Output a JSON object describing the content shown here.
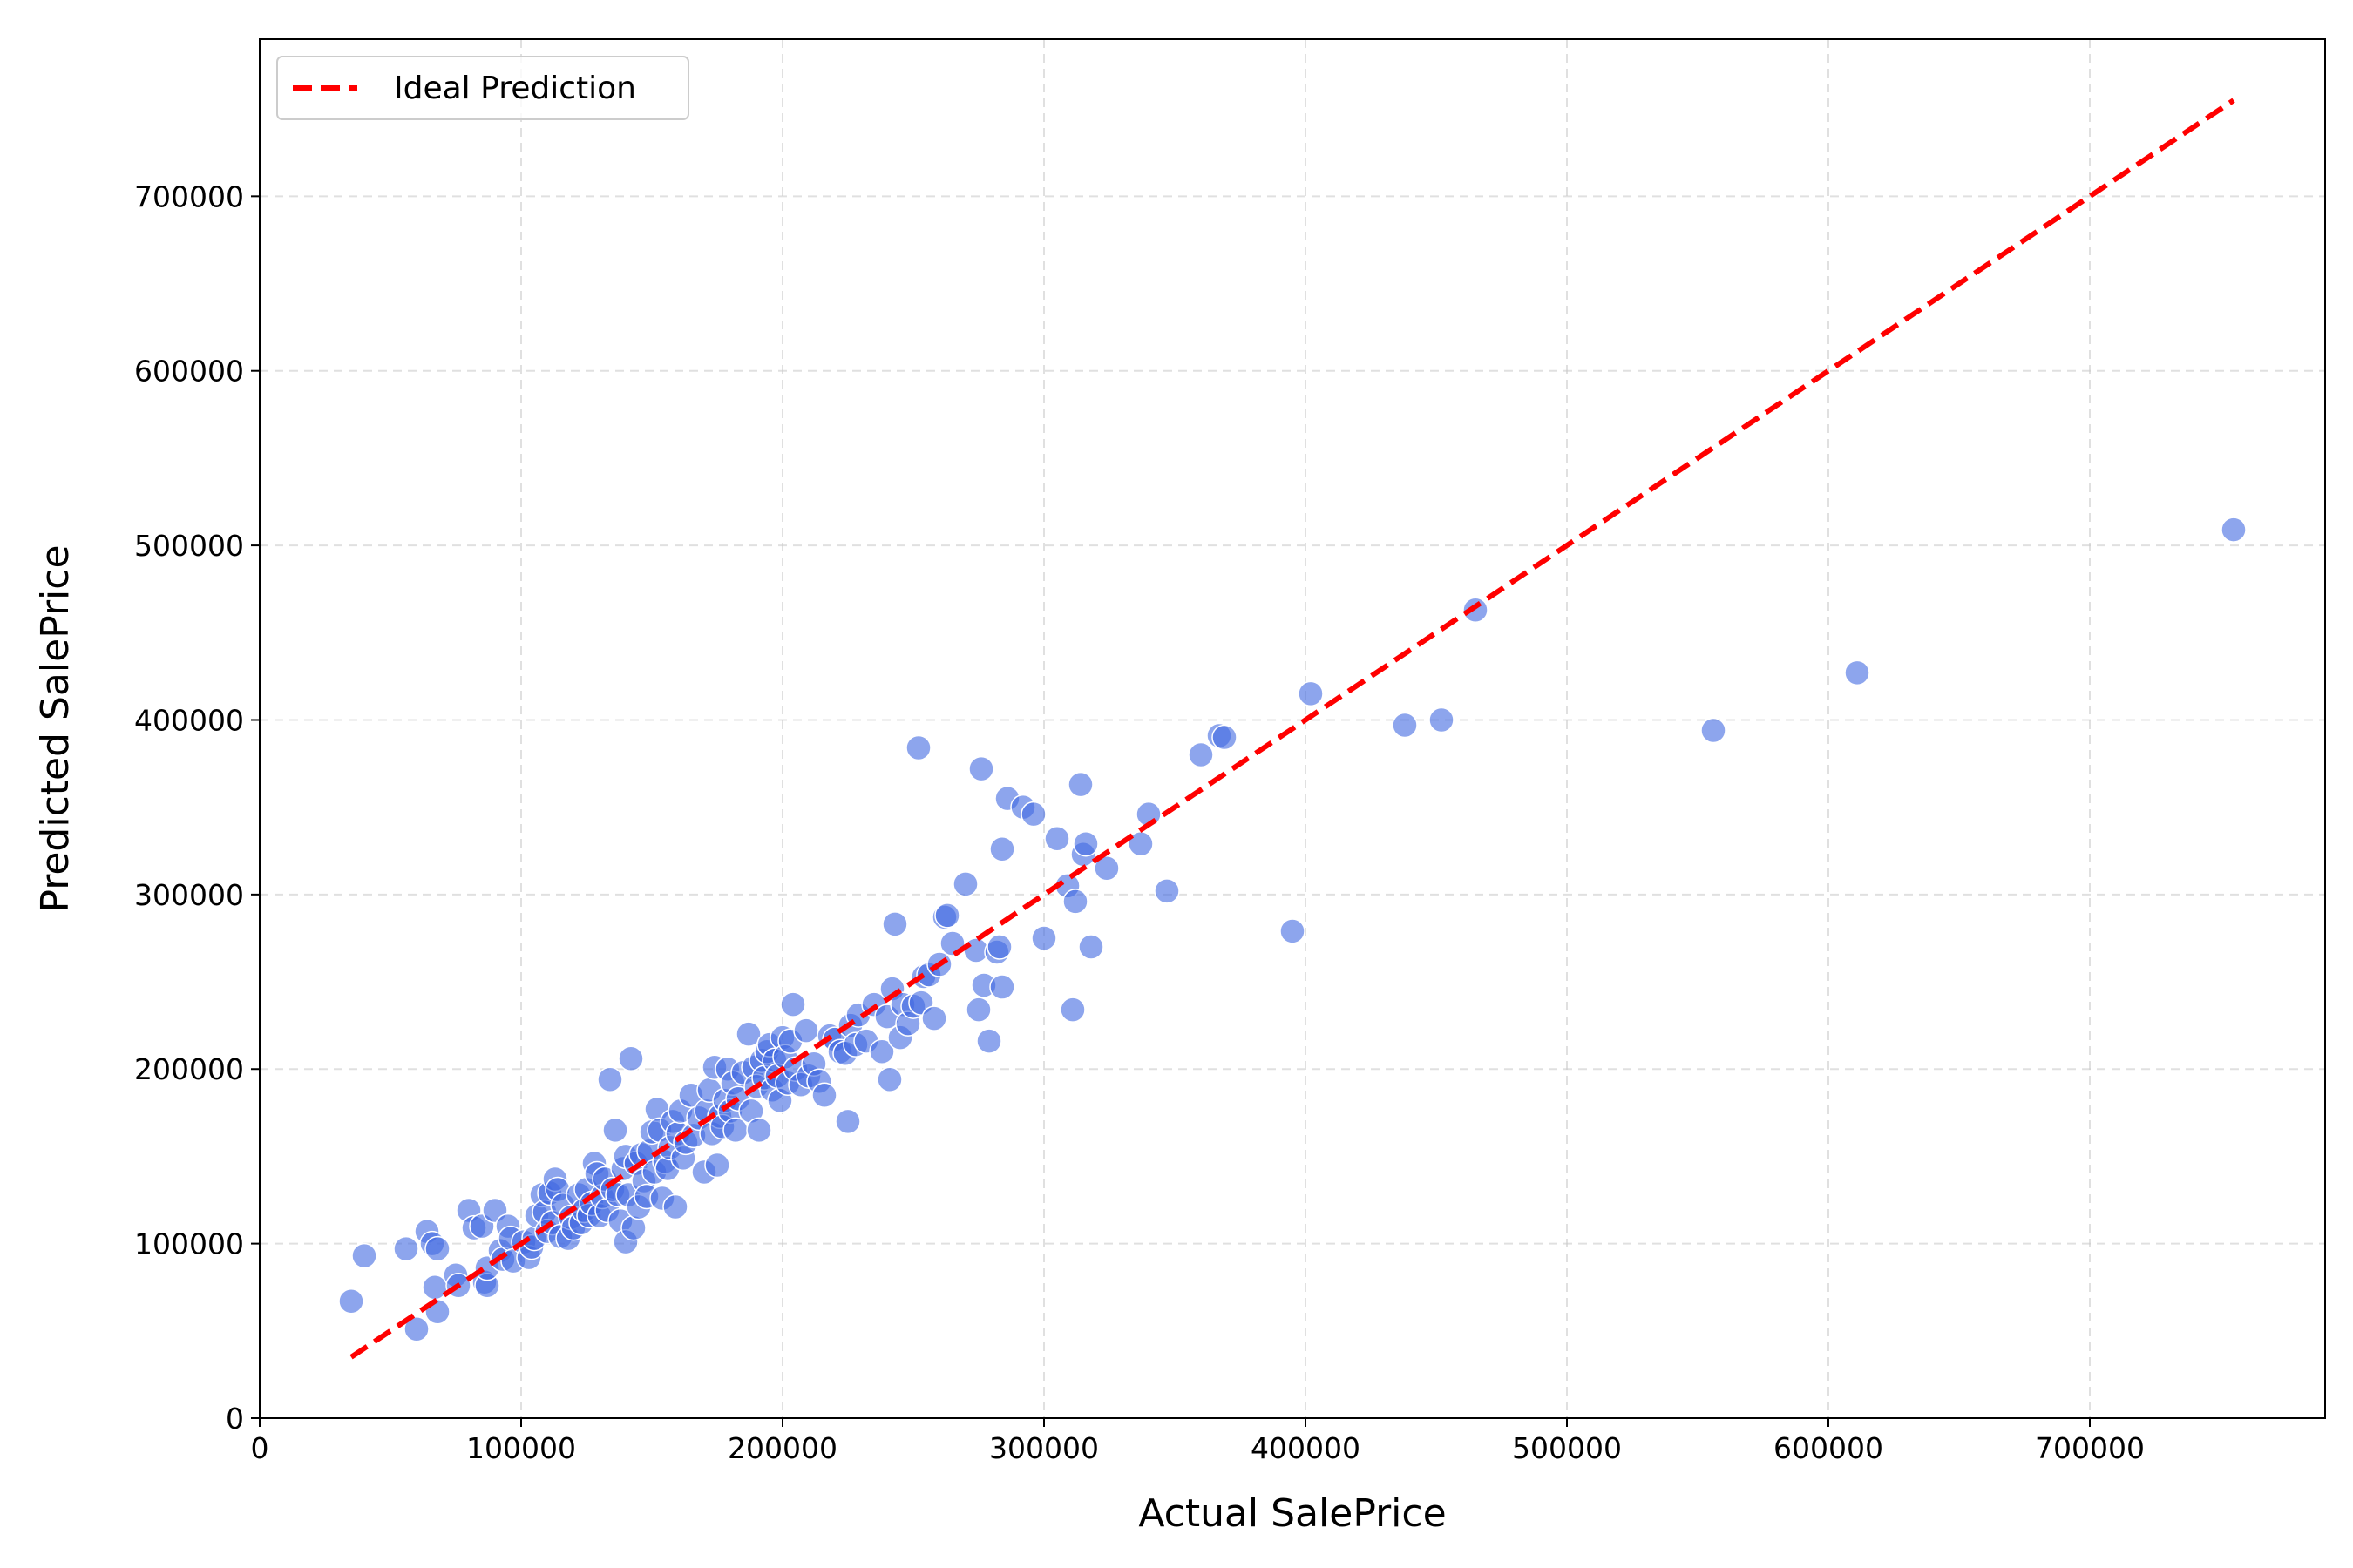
{
  "chart_data": {
    "type": "scatter",
    "xlabel": "Actual SalePrice",
    "ylabel": "Predicted SalePrice",
    "xlim": [
      0,
      790000
    ],
    "ylim": [
      0,
      790000
    ],
    "xticks": [
      0,
      100000,
      200000,
      300000,
      400000,
      500000,
      600000,
      700000
    ],
    "yticks": [
      0,
      100000,
      200000,
      300000,
      400000,
      500000,
      600000,
      700000
    ],
    "grid": true,
    "legend_position": "top-left",
    "point_color": "#4169E1",
    "series": [
      {
        "name": "",
        "points": [
          [
            35000,
            67000
          ],
          [
            40000,
            93000
          ],
          [
            56000,
            97000
          ],
          [
            60000,
            51000
          ],
          [
            64000,
            107000
          ],
          [
            66000,
            100000
          ],
          [
            67000,
            75000
          ],
          [
            68000,
            97000
          ],
          [
            68000,
            61000
          ],
          [
            75000,
            82000
          ],
          [
            76000,
            76000
          ],
          [
            80000,
            119000
          ],
          [
            82000,
            109000
          ],
          [
            85000,
            110000
          ],
          [
            86000,
            78000
          ],
          [
            87000,
            76000
          ],
          [
            87000,
            86000
          ],
          [
            90000,
            119000
          ],
          [
            92000,
            96000
          ],
          [
            93000,
            91000
          ],
          [
            95000,
            110000
          ],
          [
            96000,
            103000
          ],
          [
            97000,
            90000
          ],
          [
            101000,
            101000
          ],
          [
            103000,
            92000
          ],
          [
            104000,
            98000
          ],
          [
            105000,
            103000
          ],
          [
            106000,
            116000
          ],
          [
            108000,
            128000
          ],
          [
            109000,
            118000
          ],
          [
            110000,
            107000
          ],
          [
            111000,
            129000
          ],
          [
            112000,
            112000
          ],
          [
            113000,
            137000
          ],
          [
            114000,
            131000
          ],
          [
            115000,
            104000
          ],
          [
            116000,
            122000
          ],
          [
            118000,
            103000
          ],
          [
            119000,
            115000
          ],
          [
            120000,
            109000
          ],
          [
            122000,
            128000
          ],
          [
            123000,
            112000
          ],
          [
            124000,
            119000
          ],
          [
            125000,
            131000
          ],
          [
            126000,
            116000
          ],
          [
            127000,
            123000
          ],
          [
            128000,
            146000
          ],
          [
            129000,
            140000
          ],
          [
            130000,
            116000
          ],
          [
            131000,
            127000
          ],
          [
            132000,
            137000
          ],
          [
            133000,
            119000
          ],
          [
            134000,
            194000
          ],
          [
            135000,
            131000
          ],
          [
            136000,
            165000
          ],
          [
            137000,
            128000
          ],
          [
            138000,
            113000
          ],
          [
            139000,
            143000
          ],
          [
            140000,
            101000
          ],
          [
            140000,
            150000
          ],
          [
            141000,
            128000
          ],
          [
            142000,
            206000
          ],
          [
            143000,
            109000
          ],
          [
            144000,
            146000
          ],
          [
            145000,
            121000
          ],
          [
            146000,
            151000
          ],
          [
            147000,
            136000
          ],
          [
            148000,
            127000
          ],
          [
            149000,
            153000
          ],
          [
            150000,
            164000
          ],
          [
            151000,
            141000
          ],
          [
            152000,
            177000
          ],
          [
            153000,
            165000
          ],
          [
            154000,
            126000
          ],
          [
            155000,
            147000
          ],
          [
            156000,
            143000
          ],
          [
            157000,
            155000
          ],
          [
            158000,
            170000
          ],
          [
            159000,
            121000
          ],
          [
            160000,
            163000
          ],
          [
            161000,
            176000
          ],
          [
            162000,
            149000
          ],
          [
            163000,
            158000
          ],
          [
            165000,
            185000
          ],
          [
            166000,
            162000
          ],
          [
            168000,
            172000
          ],
          [
            170000,
            141000
          ],
          [
            171000,
            176000
          ],
          [
            172000,
            188000
          ],
          [
            173000,
            163000
          ],
          [
            174000,
            201000
          ],
          [
            175000,
            145000
          ],
          [
            176000,
            173000
          ],
          [
            177000,
            167000
          ],
          [
            178000,
            182000
          ],
          [
            179000,
            200000
          ],
          [
            180000,
            176000
          ],
          [
            181000,
            192000
          ],
          [
            182000,
            165000
          ],
          [
            183000,
            183000
          ],
          [
            185000,
            198000
          ],
          [
            187000,
            220000
          ],
          [
            188000,
            176000
          ],
          [
            189000,
            201000
          ],
          [
            190000,
            190000
          ],
          [
            191000,
            165000
          ],
          [
            192000,
            205000
          ],
          [
            193000,
            195000
          ],
          [
            194000,
            210000
          ],
          [
            195000,
            214000
          ],
          [
            196000,
            188000
          ],
          [
            197000,
            205000
          ],
          [
            198000,
            196000
          ],
          [
            199000,
            182000
          ],
          [
            200000,
            218000
          ],
          [
            201000,
            207000
          ],
          [
            202000,
            192000
          ],
          [
            203000,
            216000
          ],
          [
            204000,
            237000
          ],
          [
            205000,
            200000
          ],
          [
            207000,
            191000
          ],
          [
            209000,
            222000
          ],
          [
            210000,
            196000
          ],
          [
            212000,
            203000
          ],
          [
            214000,
            193000
          ],
          [
            216000,
            185000
          ],
          [
            218000,
            219000
          ],
          [
            220000,
            217000
          ],
          [
            222000,
            210000
          ],
          [
            224000,
            209000
          ],
          [
            225000,
            170000
          ],
          [
            226000,
            225000
          ],
          [
            228000,
            214000
          ],
          [
            229000,
            231000
          ],
          [
            232000,
            216000
          ],
          [
            235000,
            237000
          ],
          [
            238000,
            210000
          ],
          [
            240000,
            230000
          ],
          [
            241000,
            194000
          ],
          [
            242000,
            246000
          ],
          [
            243000,
            283000
          ],
          [
            245000,
            218000
          ],
          [
            246000,
            237000
          ],
          [
            248000,
            226000
          ],
          [
            250000,
            236000
          ],
          [
            252000,
            384000
          ],
          [
            253000,
            238000
          ],
          [
            254000,
            253000
          ],
          [
            256000,
            254000
          ],
          [
            258000,
            229000
          ],
          [
            260000,
            260000
          ],
          [
            262000,
            287000
          ],
          [
            263000,
            288000
          ],
          [
            265000,
            272000
          ],
          [
            270000,
            306000
          ],
          [
            274000,
            268000
          ],
          [
            275000,
            234000
          ],
          [
            276000,
            372000
          ],
          [
            277000,
            248000
          ],
          [
            279000,
            216000
          ],
          [
            282000,
            267000
          ],
          [
            283000,
            270000
          ],
          [
            284000,
            326000
          ],
          [
            284000,
            247000
          ],
          [
            286000,
            355000
          ],
          [
            292000,
            350000
          ],
          [
            296000,
            346000
          ],
          [
            300000,
            275000
          ],
          [
            305000,
            332000
          ],
          [
            309000,
            305000
          ],
          [
            311000,
            234000
          ],
          [
            312000,
            296000
          ],
          [
            314000,
            363000
          ],
          [
            315000,
            323000
          ],
          [
            316000,
            329000
          ],
          [
            318000,
            270000
          ],
          [
            324000,
            315000
          ],
          [
            337000,
            329000
          ],
          [
            340000,
            346000
          ],
          [
            347000,
            302000
          ],
          [
            360000,
            380000
          ],
          [
            367000,
            391000
          ],
          [
            369000,
            390000
          ],
          [
            395000,
            279000
          ],
          [
            402000,
            415000
          ],
          [
            438000,
            397000
          ],
          [
            452000,
            400000
          ],
          [
            465000,
            463000
          ],
          [
            556000,
            394000
          ],
          [
            611000,
            427000
          ],
          [
            755000,
            509000
          ]
        ]
      },
      {
        "name": "Ideal Prediction",
        "line_style": "dashed",
        "color": "#ff0000",
        "points": [
          [
            35000,
            35000
          ],
          [
            755000,
            755000
          ]
        ]
      }
    ]
  }
}
